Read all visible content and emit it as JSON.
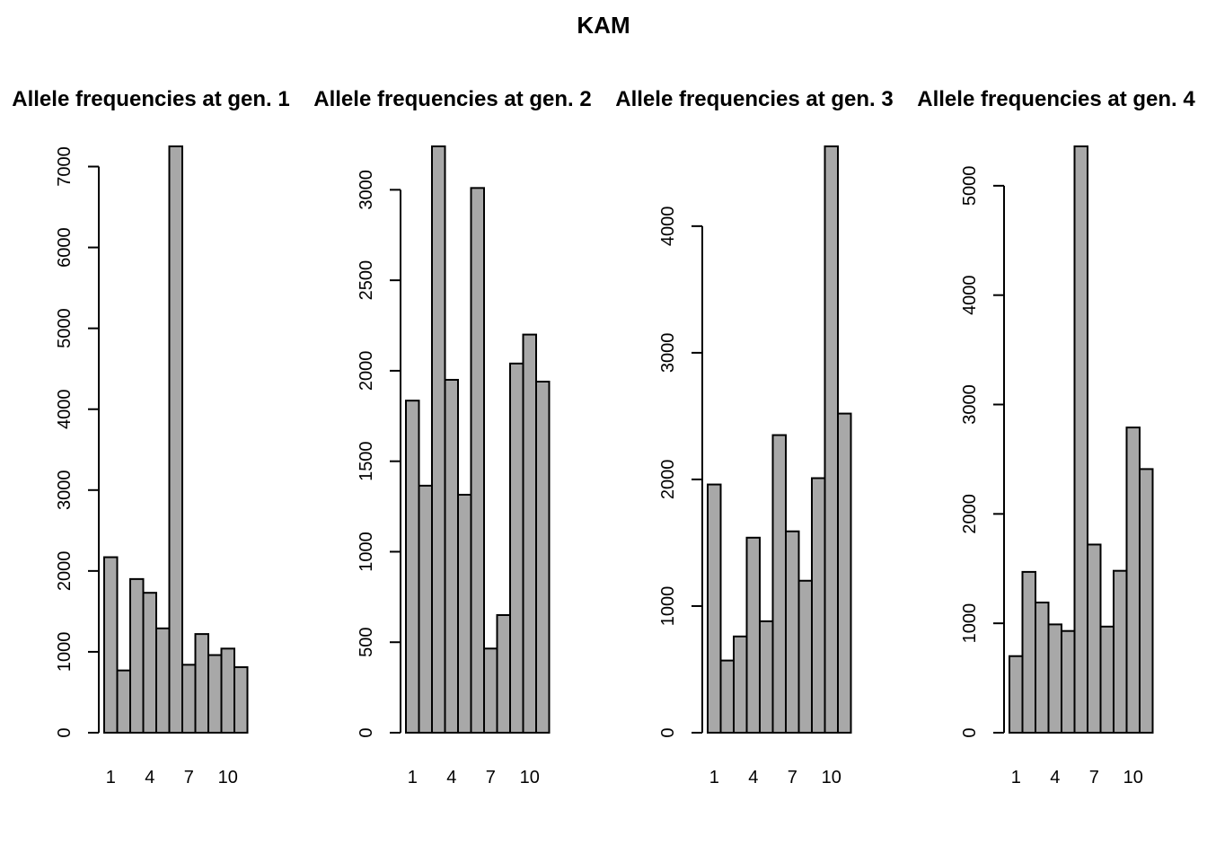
{
  "figure": {
    "title": "KAM"
  },
  "chart_data": [
    {
      "type": "bar",
      "title": "Allele frequencies at gen. 1",
      "categories": [
        "1",
        "2",
        "3",
        "4",
        "5",
        "6",
        "7",
        "8",
        "9",
        "10",
        "11"
      ],
      "x_tick_labels": [
        "1",
        "4",
        "7",
        "10"
      ],
      "values": [
        2170,
        770,
        1900,
        1730,
        1290,
        7250,
        840,
        1220,
        960,
        1040,
        810
      ],
      "y_ticks": [
        0,
        1000,
        2000,
        3000,
        4000,
        5000,
        6000,
        7000
      ],
      "ylim": [
        0,
        7250
      ],
      "xlabel": "",
      "ylabel": ""
    },
    {
      "type": "bar",
      "title": "Allele frequencies at gen. 2",
      "categories": [
        "1",
        "2",
        "3",
        "4",
        "5",
        "6",
        "7",
        "8",
        "9",
        "10",
        "11"
      ],
      "x_tick_labels": [
        "1",
        "4",
        "7",
        "10"
      ],
      "values": [
        1835,
        1365,
        3240,
        1950,
        1315,
        3010,
        465,
        650,
        2040,
        2200,
        1940
      ],
      "y_ticks": [
        0,
        500,
        1000,
        1500,
        2000,
        2500,
        3000
      ],
      "ylim": [
        0,
        3240
      ],
      "xlabel": "",
      "ylabel": ""
    },
    {
      "type": "bar",
      "title": "Allele frequencies at gen. 3",
      "categories": [
        "1",
        "2",
        "3",
        "4",
        "5",
        "6",
        "7",
        "8",
        "9",
        "10",
        "11"
      ],
      "x_tick_labels": [
        "1",
        "4",
        "7",
        "10"
      ],
      "values": [
        1960,
        570,
        760,
        1540,
        880,
        2350,
        1590,
        1200,
        2010,
        4630,
        2520
      ],
      "y_ticks": [
        0,
        1000,
        2000,
        3000,
        4000
      ],
      "ylim": [
        0,
        4630
      ],
      "xlabel": "",
      "ylabel": ""
    },
    {
      "type": "bar",
      "title": "Allele frequencies at gen. 4",
      "categories": [
        "1",
        "2",
        "3",
        "4",
        "5",
        "6",
        "7",
        "8",
        "9",
        "10",
        "11"
      ],
      "x_tick_labels": [
        "1",
        "4",
        "7",
        "10"
      ],
      "values": [
        700,
        1470,
        1190,
        990,
        930,
        5360,
        1720,
        970,
        1480,
        2790,
        2410
      ],
      "y_ticks": [
        0,
        1000,
        2000,
        3000,
        4000,
        5000
      ],
      "ylim": [
        0,
        5360
      ],
      "xlabel": "",
      "ylabel": ""
    }
  ]
}
